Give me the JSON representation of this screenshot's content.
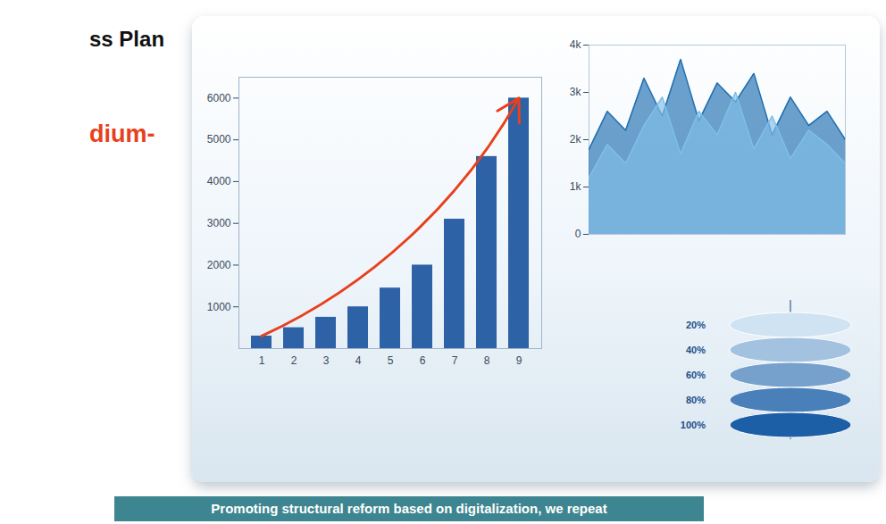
{
  "heading": "ss Plan",
  "subheading": "dium-",
  "caption": "Promoting structural reform based on digitalization, we repeat",
  "levels": [
    "20%",
    "40%",
    "60%",
    "80%",
    "100%"
  ],
  "chart_data": [
    {
      "type": "bar",
      "categories": [
        "1",
        "2",
        "3",
        "4",
        "5",
        "6",
        "7",
        "8",
        "9"
      ],
      "values": [
        300,
        500,
        750,
        1000,
        1450,
        2000,
        3100,
        4600,
        6000
      ],
      "color": "#2e62a6",
      "ylim": [
        0,
        6500
      ],
      "yticks": [
        1000,
        2000,
        3000,
        4000,
        5000,
        6000
      ],
      "grid": false
    },
    {
      "type": "area",
      "x": [
        0,
        1,
        2,
        3,
        4,
        5,
        6,
        7,
        8,
        9,
        10,
        11,
        12,
        13,
        14
      ],
      "xlim": [
        0,
        14
      ],
      "series": [
        {
          "color": "#1f6fb0",
          "values": [
            1800,
            2600,
            2200,
            3300,
            2500,
            3700,
            2400,
            3200,
            2800,
            3400,
            2100,
            2900,
            2300,
            2600,
            2000
          ]
        },
        {
          "color": "#7fbfe6",
          "values": [
            1200,
            1900,
            1500,
            2300,
            2900,
            1700,
            2600,
            2100,
            3000,
            1800,
            2500,
            1600,
            2200,
            1900,
            1500
          ]
        }
      ],
      "stacked": false,
      "ylim": [
        0,
        4000
      ],
      "yticks": [
        0,
        {
          "value": 1000,
          "label": "1k"
        },
        {
          "value": 2000,
          "label": "2k"
        },
        {
          "value": 3000,
          "label": "3k"
        },
        {
          "value": 4000,
          "label": "4k"
        }
      ],
      "tick_labels": "y",
      "grid": false
    }
  ]
}
